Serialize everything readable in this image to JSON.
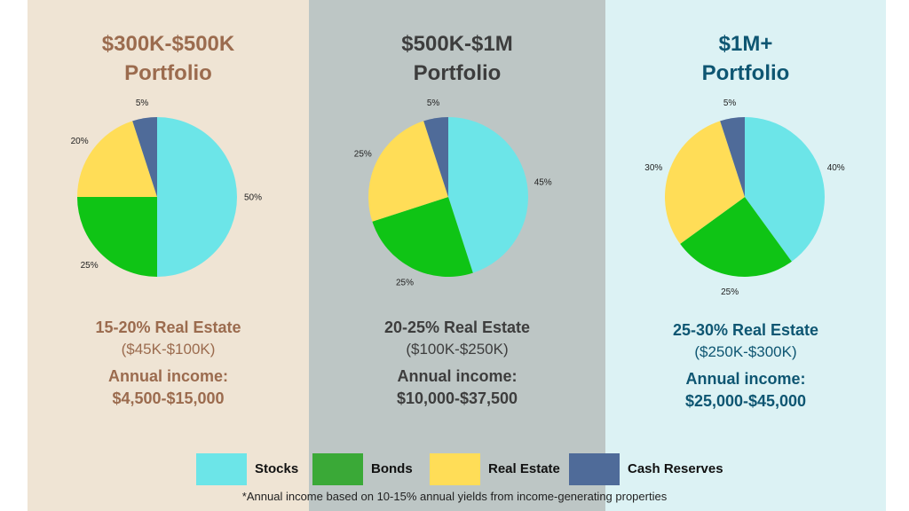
{
  "colors": {
    "stocks": "#6ce5e8",
    "bonds": "#0fc415",
    "real_estate": "#ffdd57",
    "cash": "#4f6b99",
    "bonds_legend": "#3aa937"
  },
  "panels": [
    {
      "title_line1": "$300K-$500K",
      "title_line2": "Portfolio",
      "title_color": "#9b6b4e",
      "re_pct": "15-20% Real Estate",
      "re_range": "($45K-$100K)",
      "income_label": "Annual income:",
      "income_value": "$4,500-$15,000"
    },
    {
      "title_line1": "$500K-$1M",
      "title_line2": "Portfolio",
      "title_color": "#3d3d3d",
      "re_pct": "20-25% Real Estate",
      "re_range": "($100K-$250K)",
      "income_label": "Annual income:",
      "income_value": "$10,000-$37,500"
    },
    {
      "title_line1": "$1M+",
      "title_line2": "Portfolio",
      "title_color": "#0e5672",
      "re_pct": "25-30% Real Estate",
      "re_range": "($250K-$300K)",
      "income_label": "Annual income:",
      "income_value": "$25,000-$45,000"
    }
  ],
  "legend": {
    "stocks": "Stocks",
    "bonds": "Bonds",
    "real_estate": "Real Estate",
    "cash": "Cash Reserves"
  },
  "footnote": "*Annual income based on 10-15% annual yields from income-generating properties",
  "chart_data": [
    {
      "type": "pie",
      "categories": [
        "Stocks",
        "Bonds",
        "Real Estate",
        "Cash Reserves"
      ],
      "values": [
        50,
        25,
        20,
        5
      ],
      "labels": [
        "50%",
        "25%",
        "20%",
        "5%"
      ],
      "title": ""
    },
    {
      "type": "pie",
      "categories": [
        "Stocks",
        "Bonds",
        "Real Estate",
        "Cash Reserves"
      ],
      "values": [
        45,
        25,
        25,
        5
      ],
      "labels": [
        "45%",
        "25%",
        "25%",
        "5%"
      ],
      "title": ""
    },
    {
      "type": "pie",
      "categories": [
        "Stocks",
        "Bonds",
        "Real Estate",
        "Cash Reserves"
      ],
      "values": [
        40,
        25,
        30,
        5
      ],
      "labels": [
        "40%",
        "25%",
        "30%",
        "5%"
      ],
      "title": ""
    }
  ]
}
